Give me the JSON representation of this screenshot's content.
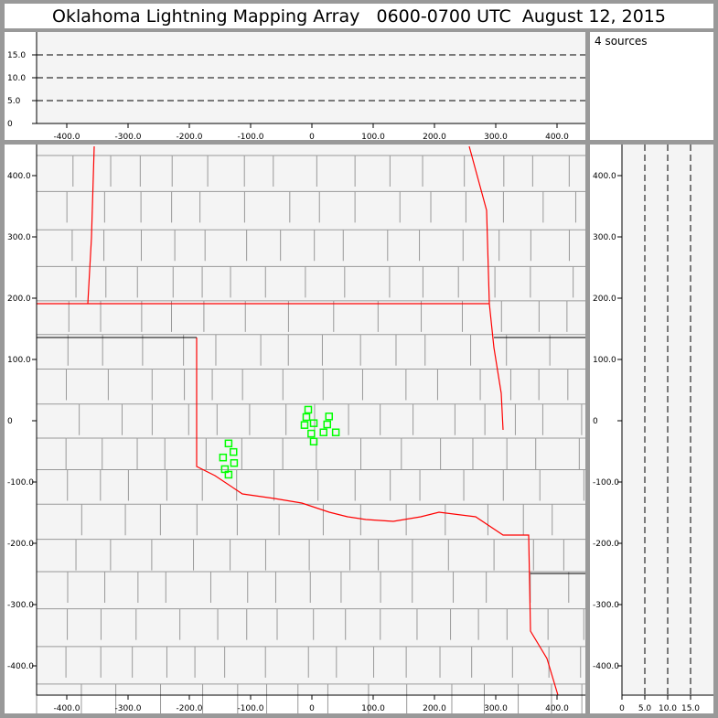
{
  "title": "Oklahoma Lightning Mapping Array   0600-0700 UTC  August 12, 2015",
  "source_count": "4 sources",
  "colors": {
    "marker": "#00ff00",
    "state_border": "#ff0000",
    "county": "#999999",
    "plot_bg": "#f4f4f4"
  },
  "chart_data": {
    "type": "scatter",
    "title": "Oklahoma Lightning Mapping Array   0600-0700 UTC  August 12, 2015",
    "panels": [
      {
        "name": "altitude-vs-east",
        "xlim": [
          -450,
          450
        ],
        "ylim": [
          0,
          20
        ],
        "xticks": [
          "-400.0",
          "-300.0",
          "-200.0",
          "-100.0",
          "0",
          "100.0",
          "200.0",
          "300.0",
          "400.0"
        ],
        "yticks": [
          "0",
          "5.0",
          "10.0",
          "15.0"
        ],
        "dashed_grid": [
          5,
          10,
          15
        ]
      },
      {
        "name": "plan-view",
        "xlim": [
          -450,
          450
        ],
        "ylim": [
          -450,
          450
        ],
        "xticks": [
          "-400.0",
          "-300.0",
          "-200.0",
          "-100.0",
          "0",
          "100.0",
          "200.0",
          "300.0",
          "400.0"
        ],
        "yticks": [
          "400.0",
          "300.0",
          "200.0",
          "100.0",
          "0",
          "-100.0",
          "-200.0",
          "-300.0",
          "-400.0"
        ]
      },
      {
        "name": "north-vs-altitude",
        "xlim": [
          0,
          20
        ],
        "ylim": [
          -450,
          450
        ],
        "xticks": [
          "0",
          "5.0",
          "10.0",
          "15.0"
        ],
        "dashed_grid": [
          5,
          10,
          15
        ]
      }
    ],
    "points": [
      [
        -6,
        18
      ],
      [
        -9,
        6
      ],
      [
        28,
        7
      ],
      [
        -12,
        -7
      ],
      [
        3,
        -4
      ],
      [
        25,
        -6
      ],
      [
        -1,
        -21
      ],
      [
        19,
        -19
      ],
      [
        39,
        -19
      ],
      [
        3,
        -34
      ],
      [
        -136,
        -37
      ],
      [
        -128,
        -51
      ],
      [
        -145,
        -60
      ],
      [
        -127,
        -69
      ],
      [
        -142,
        -79
      ],
      [
        -136,
        -88
      ]
    ]
  }
}
